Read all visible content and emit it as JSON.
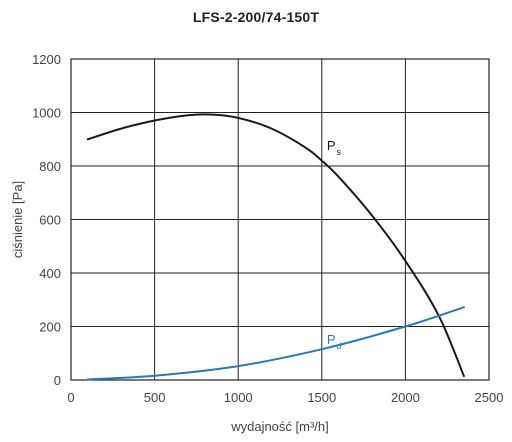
{
  "chart_data": {
    "type": "line",
    "title": "LFS-2-200/74-150T",
    "xlabel": "wydajność [m³/h]",
    "ylabel": "ciśnienie [Pa]",
    "xlim": [
      0,
      2500
    ],
    "ylim": [
      0,
      1200
    ],
    "xticks": [
      "0",
      "500",
      "1000",
      "1500",
      "2000",
      "2500"
    ],
    "yticks": [
      "0",
      "200",
      "400",
      "600",
      "800",
      "1000",
      "1200"
    ],
    "grid": true,
    "series": [
      {
        "name": "P",
        "subscript": "s",
        "color": "#1a1a1a",
        "x": [
          100,
          300,
          500,
          700,
          850,
          1000,
          1200,
          1400,
          1500,
          1600,
          1800,
          2000,
          2200,
          2350
        ],
        "y": [
          900,
          940,
          970,
          990,
          992,
          980,
          940,
          870,
          820,
          760,
          615,
          445,
          240,
          15
        ]
      },
      {
        "name": "P",
        "subscript": "d",
        "color": "#2a7ab8",
        "x": [
          100,
          500,
          1000,
          1500,
          2000,
          2350
        ],
        "y": [
          2,
          16,
          52,
          115,
          200,
          272
        ]
      }
    ]
  }
}
